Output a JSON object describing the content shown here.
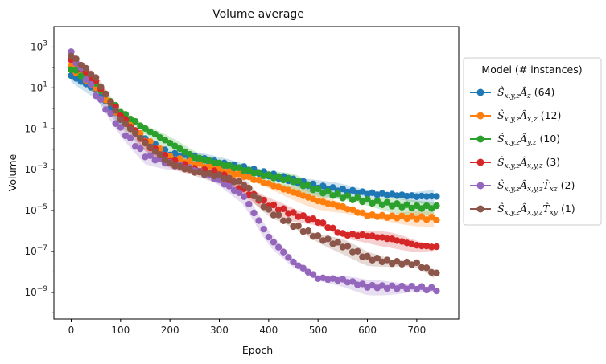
{
  "chart_data": {
    "type": "scatter",
    "title": "Volume average",
    "xlabel": "Epoch",
    "ylabel": "Volume",
    "xlim": [
      -35,
      785
    ],
    "ylim": [
      5e-11,
      10000
    ],
    "yscale": "log",
    "xticks": [
      0,
      100,
      200,
      300,
      400,
      500,
      600,
      700
    ],
    "yticks": [
      {
        "exp": "3",
        "value": 1000
      },
      {
        "exp": "1",
        "value": 10
      },
      {
        "exp": "−1",
        "value": 0.1
      },
      {
        "exp": "−3",
        "value": 0.001
      },
      {
        "exp": "−5",
        "value": 1e-05
      },
      {
        "exp": "−7",
        "value": 1e-07
      },
      {
        "exp": "−9",
        "value": 1e-09
      }
    ],
    "grid": false,
    "legend": {
      "title": "Model (# instances)",
      "placement": "outside-right"
    },
    "series": [
      {
        "name_parts": {
          "s": "x,y,z",
          "a": "z",
          "t": "",
          "count": "64"
        },
        "color": "#1f77b4",
        "points": [
          [
            0,
            40
          ],
          [
            50,
            8
          ],
          [
            100,
            0.3
          ],
          [
            150,
            0.03
          ],
          [
            200,
            0.006
          ],
          [
            250,
            0.004
          ],
          [
            300,
            0.002
          ],
          [
            350,
            0.0012
          ],
          [
            400,
            0.0006
          ],
          [
            450,
            0.0003
          ],
          [
            500,
            0.00015
          ],
          [
            550,
            0.0001
          ],
          [
            600,
            7e-05
          ],
          [
            650,
            6e-05
          ],
          [
            700,
            5e-05
          ],
          [
            745,
            5e-05
          ]
        ]
      },
      {
        "name_parts": {
          "s": "x,y,z",
          "a": "x,z",
          "t": "",
          "count": "12"
        },
        "color": "#ff7f0e",
        "points": [
          [
            0,
            100
          ],
          [
            50,
            12
          ],
          [
            100,
            0.4
          ],
          [
            150,
            0.03
          ],
          [
            200,
            0.004
          ],
          [
            250,
            0.002
          ],
          [
            300,
            0.001
          ],
          [
            350,
            0.0005
          ],
          [
            400,
            0.0002
          ],
          [
            450,
            8e-05
          ],
          [
            500,
            3e-05
          ],
          [
            550,
            1.5e-05
          ],
          [
            600,
            6e-06
          ],
          [
            650,
            5e-06
          ],
          [
            700,
            4.5e-06
          ],
          [
            745,
            4e-06
          ]
        ]
      },
      {
        "name_parts": {
          "s": "x,y,z",
          "a": "y,z",
          "t": "",
          "count": "10"
        },
        "color": "#2ca02c",
        "points": [
          [
            0,
            90
          ],
          [
            50,
            15
          ],
          [
            100,
            0.7
          ],
          [
            150,
            0.1
          ],
          [
            200,
            0.02
          ],
          [
            250,
            0.004
          ],
          [
            300,
            0.002
          ],
          [
            350,
            0.001
          ],
          [
            400,
            0.0005
          ],
          [
            450,
            0.0003
          ],
          [
            500,
            0.0001
          ],
          [
            550,
            5e-05
          ],
          [
            600,
            3e-05
          ],
          [
            650,
            2e-05
          ],
          [
            700,
            1.5e-05
          ],
          [
            745,
            1.5e-05
          ]
        ]
      },
      {
        "name_parts": {
          "s": "x,y,z",
          "a": "x,y,z",
          "t": "",
          "count": "3"
        },
        "color": "#d62728",
        "points": [
          [
            0,
            250
          ],
          [
            50,
            20
          ],
          [
            100,
            0.5
          ],
          [
            150,
            0.02
          ],
          [
            200,
            0.003
          ],
          [
            250,
            0.001
          ],
          [
            300,
            0.0007
          ],
          [
            350,
            0.0001
          ],
          [
            400,
            2e-05
          ],
          [
            450,
            7e-06
          ],
          [
            500,
            3e-06
          ],
          [
            550,
            7e-07
          ],
          [
            600,
            6e-07
          ],
          [
            650,
            4e-07
          ],
          [
            700,
            2e-07
          ],
          [
            745,
            1.6e-07
          ]
        ]
      },
      {
        "name_parts": {
          "s": "x,y,z",
          "a": "x,y,z",
          "t": "xz",
          "count": "2"
        },
        "color": "#9467bd",
        "points": [
          [
            0,
            500
          ],
          [
            50,
            5
          ],
          [
            100,
            0.1
          ],
          [
            150,
            0.005
          ],
          [
            200,
            0.002
          ],
          [
            250,
            0.001
          ],
          [
            300,
            0.0003
          ],
          [
            350,
            5e-05
          ],
          [
            375,
            5e-06
          ],
          [
            400,
            5e-07
          ],
          [
            450,
            3e-08
          ],
          [
            500,
            5e-09
          ],
          [
            550,
            4e-09
          ],
          [
            600,
            2e-09
          ],
          [
            650,
            1.8e-09
          ],
          [
            700,
            1.7e-09
          ],
          [
            745,
            1.4e-09
          ]
        ]
      },
      {
        "name_parts": {
          "s": "x,y,z",
          "a": "x,y,z",
          "t": "xy",
          "count": "1"
        },
        "color": "#8c564b",
        "points": [
          [
            0,
            400
          ],
          [
            50,
            30
          ],
          [
            100,
            0.3
          ],
          [
            150,
            0.02
          ],
          [
            200,
            0.002
          ],
          [
            250,
            0.0008
          ],
          [
            300,
            0.0005
          ],
          [
            350,
            0.0002
          ],
          [
            400,
            1e-05
          ],
          [
            450,
            2e-06
          ],
          [
            500,
            5e-07
          ],
          [
            550,
            2e-07
          ],
          [
            600,
            5e-08
          ],
          [
            650,
            3e-08
          ],
          [
            700,
            2.5e-08
          ],
          [
            745,
            7e-09
          ]
        ]
      }
    ]
  }
}
